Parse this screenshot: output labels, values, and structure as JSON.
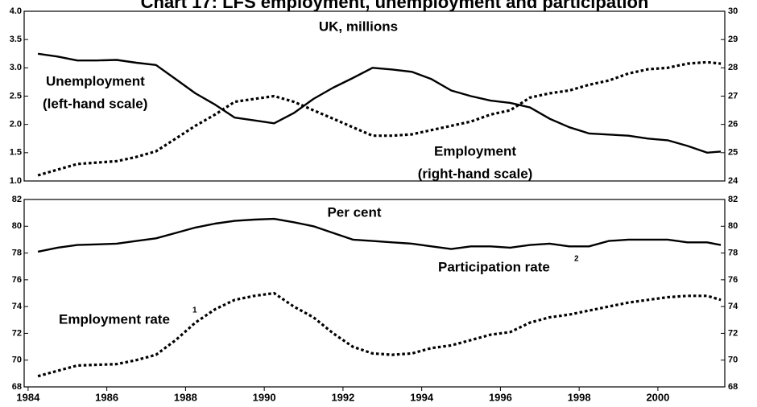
{
  "title": "Chart 17:  LFS employment, unemployment and participation",
  "chart_data": [
    {
      "type": "line",
      "subtitle": "UK, millions",
      "x": [
        1984.25,
        1984.75,
        1985.25,
        1985.75,
        1986.25,
        1986.75,
        1987.25,
        1987.75,
        1988.25,
        1988.75,
        1989.25,
        1989.75,
        1990.25,
        1990.75,
        1991.25,
        1991.75,
        1992.25,
        1992.75,
        1993.25,
        1993.75,
        1994.25,
        1994.75,
        1995.25,
        1995.75,
        1996.25,
        1996.75,
        1997.25,
        1997.75,
        1998.25,
        1998.75,
        1999.25,
        1999.75,
        2000.25,
        2000.75,
        2001.25,
        2001.6
      ],
      "xlim": [
        1983.9,
        2001.7
      ],
      "ylim": [
        1,
        4
      ],
      "yticks": [
        {
          "value": 1,
          "label": "1.0"
        },
        1.5,
        {
          "value": 2,
          "label": "2.0"
        },
        2.5,
        {
          "value": 3,
          "label": "3.0"
        },
        3.5,
        {
          "value": 4,
          "label": "4.0"
        }
      ],
      "y2lim": [
        24,
        30
      ],
      "y2ticks": [
        24,
        25,
        26,
        27,
        28,
        29,
        30
      ],
      "series": [
        {
          "name": "Unemployment",
          "note": "(left-hand scale)",
          "color": "#000000",
          "style": "solid",
          "values": [
            3.25,
            3.2,
            3.13,
            3.13,
            3.14,
            3.09,
            3.05,
            2.8,
            2.55,
            2.35,
            2.12,
            2.07,
            2.02,
            2.2,
            2.45,
            2.65,
            2.82,
            3.0,
            2.97,
            2.93,
            2.8,
            2.6,
            2.5,
            2.42,
            2.38,
            2.3,
            2.1,
            1.95,
            1.84,
            1.82,
            1.8,
            1.75,
            1.72,
            1.62,
            1.5,
            1.52
          ]
        },
        {
          "name": "Employment",
          "note": "(right-hand scale)",
          "color": "#000000",
          "style": "dotted",
          "axis": "y2",
          "values": [
            24.2,
            24.4,
            24.6,
            24.65,
            24.7,
            24.85,
            25.05,
            25.5,
            25.95,
            26.35,
            26.8,
            26.9,
            27.0,
            26.8,
            26.5,
            26.2,
            25.9,
            25.6,
            25.6,
            25.65,
            25.8,
            25.95,
            26.1,
            26.35,
            26.5,
            26.95,
            27.1,
            27.2,
            27.4,
            27.55,
            27.8,
            27.95,
            28.0,
            28.15,
            28.2,
            28.15
          ]
        }
      ]
    },
    {
      "type": "line",
      "subtitle": "Per cent",
      "x": [
        1984.25,
        1984.75,
        1985.25,
        1985.75,
        1986.25,
        1986.75,
        1987.25,
        1987.75,
        1988.25,
        1988.75,
        1989.25,
        1989.75,
        1990.25,
        1990.75,
        1991.25,
        1991.75,
        1992.25,
        1992.75,
        1993.25,
        1993.75,
        1994.25,
        1994.75,
        1995.25,
        1995.75,
        1996.25,
        1996.75,
        1997.25,
        1997.75,
        1998.25,
        1998.75,
        1999.25,
        1999.75,
        2000.25,
        2000.75,
        2001.25,
        2001.6
      ],
      "xlim": [
        1983.9,
        2001.7
      ],
      "xticks": [
        1984,
        1986,
        1988,
        1990,
        1992,
        1994,
        1996,
        1998,
        2000
      ],
      "ylim": [
        68,
        82
      ],
      "yticks": [
        68,
        70,
        72,
        74,
        76,
        78,
        80,
        82
      ],
      "y2lim": [
        68,
        82
      ],
      "y2ticks": [
        68,
        70,
        72,
        74,
        76,
        78,
        80,
        82
      ],
      "series": [
        {
          "name": "Participation rate",
          "footnote": "2",
          "color": "#000000",
          "style": "solid",
          "values": [
            78.1,
            78.4,
            78.6,
            78.65,
            78.7,
            78.9,
            79.1,
            79.5,
            79.9,
            80.2,
            80.4,
            80.5,
            80.55,
            80.3,
            80.0,
            79.5,
            79.0,
            78.9,
            78.8,
            78.7,
            78.5,
            78.3,
            78.5,
            78.5,
            78.4,
            78.6,
            78.7,
            78.5,
            78.5,
            78.9,
            79.0,
            79.0,
            79.0,
            78.8,
            78.8,
            78.6
          ]
        },
        {
          "name": "Employment rate",
          "footnote": "1",
          "color": "#000000",
          "style": "dotted",
          "values": [
            68.8,
            69.2,
            69.6,
            69.65,
            69.7,
            70.0,
            70.4,
            71.5,
            72.8,
            73.8,
            74.5,
            74.8,
            75.0,
            74.0,
            73.2,
            72.0,
            71.0,
            70.5,
            70.4,
            70.5,
            70.9,
            71.1,
            71.5,
            71.9,
            72.1,
            72.8,
            73.2,
            73.4,
            73.7,
            74.0,
            74.3,
            74.5,
            74.7,
            74.8,
            74.8,
            74.5
          ]
        }
      ]
    }
  ]
}
